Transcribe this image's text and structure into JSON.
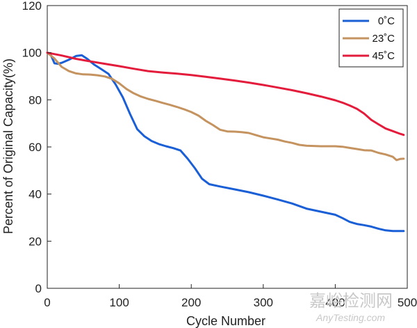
{
  "chart_data": {
    "type": "line",
    "title": "",
    "xlabel": "Cycle Number",
    "ylabel": "Percent of Original Capacity(%)",
    "xlim": [
      0,
      500
    ],
    "ylim": [
      0,
      120
    ],
    "xticks": [
      0,
      100,
      200,
      300,
      400,
      500
    ],
    "yticks": [
      0,
      20,
      40,
      60,
      80,
      100,
      120
    ],
    "xtick_labels": [
      "0",
      "100",
      "200",
      "300",
      "400",
      "500"
    ],
    "ytick_labels": [
      "0",
      "20",
      "40",
      "60",
      "80",
      "100",
      "120"
    ],
    "grid": false,
    "legend_position": "top-right",
    "series": [
      {
        "name": "0˚C",
        "color": "#1a5fd6",
        "x": [
          0,
          5,
          10,
          15,
          20,
          30,
          40,
          48,
          55,
          65,
          75,
          85,
          95,
          105,
          115,
          125,
          135,
          145,
          155,
          165,
          175,
          185,
          195,
          205,
          215,
          225,
          240,
          260,
          280,
          300,
          320,
          340,
          360,
          380,
          400,
          410,
          420,
          430,
          440,
          450,
          460,
          470,
          480,
          490,
          495
        ],
        "y": [
          100,
          99,
          95.5,
          95.3,
          95.7,
          97,
          98.6,
          98.9,
          97.5,
          95,
          93,
          91,
          86.5,
          81,
          74,
          67.5,
          64.5,
          62.5,
          61.2,
          60.3,
          59.5,
          58.5,
          55,
          51,
          46.5,
          44.2,
          43.2,
          42,
          40.8,
          39.3,
          37.7,
          36,
          33.8,
          32.5,
          31.2,
          29.8,
          28.2,
          27.3,
          26.8,
          26.2,
          25.3,
          24.6,
          24.3,
          24.3,
          24.3
        ]
      },
      {
        "name": "23˚C",
        "color": "#c4935f",
        "x": [
          0,
          10,
          20,
          30,
          40,
          50,
          60,
          70,
          80,
          90,
          100,
          110,
          120,
          130,
          140,
          150,
          160,
          170,
          180,
          190,
          200,
          210,
          220,
          230,
          240,
          250,
          260,
          270,
          280,
          290,
          300,
          310,
          320,
          330,
          340,
          350,
          360,
          370,
          380,
          390,
          400,
          410,
          420,
          430,
          440,
          450,
          460,
          470,
          480,
          485,
          490,
          495
        ],
        "y": [
          100,
          97.5,
          94,
          92.2,
          91.2,
          90.8,
          90.7,
          90.4,
          89.9,
          88.9,
          87,
          84.6,
          82.8,
          81.4,
          80.4,
          79.6,
          78.7,
          77.9,
          77,
          76,
          74.8,
          73.3,
          71.1,
          69.3,
          67.3,
          66.6,
          66.5,
          66.3,
          65.9,
          65,
          64.1,
          63.6,
          63.1,
          62.3,
          61.7,
          60.9,
          60.5,
          60.4,
          60.3,
          60.3,
          60.3,
          60.1,
          59.6,
          59.1,
          58.6,
          58.5,
          57.5,
          56.8,
          55.8,
          54.4,
          54.9,
          55
        ]
      },
      {
        "name": "45˚C",
        "color": "#e41c3c",
        "x": [
          0,
          20,
          40,
          60,
          80,
          100,
          120,
          140,
          160,
          180,
          200,
          220,
          240,
          260,
          280,
          300,
          320,
          340,
          360,
          380,
          400,
          410,
          420,
          430,
          440,
          450,
          460,
          470,
          480,
          490,
          495
        ],
        "y": [
          100,
          98.8,
          97.4,
          96.3,
          95.3,
          94.3,
          93.2,
          92.2,
          91.6,
          91.1,
          90.5,
          89.8,
          89,
          88.2,
          87.3,
          86.3,
          85.2,
          84.1,
          82.8,
          81.4,
          79.8,
          78.8,
          77.6,
          76.2,
          74.2,
          71.5,
          69.6,
          67.8,
          66.7,
          65.6,
          65.1
        ]
      }
    ]
  },
  "watermark": {
    "brand_cn": "嘉峪检测网",
    "brand_en": "AnyTesting.com"
  }
}
